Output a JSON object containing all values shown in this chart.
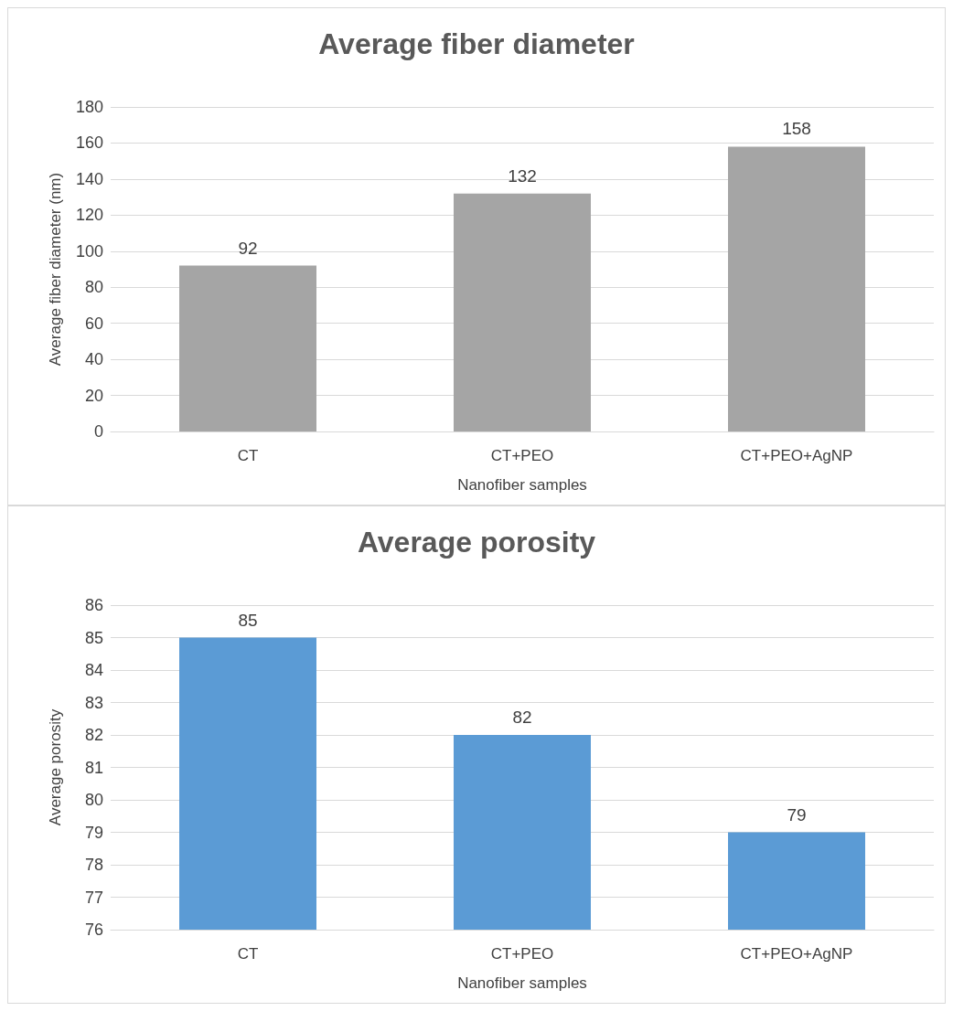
{
  "chart_data": [
    {
      "type": "bar",
      "title": "Average fiber diameter",
      "xlabel": "Nanofiber samples",
      "ylabel": "Average fiber diameter (nm)",
      "categories": [
        "CT",
        "CT+PEO",
        "CT+PEO+AgNP"
      ],
      "values": [
        92,
        132,
        158
      ],
      "color": "#a5a5a5",
      "ylim": [
        0,
        180
      ],
      "yticks": [
        0,
        20,
        40,
        60,
        80,
        100,
        120,
        140,
        160,
        180
      ],
      "grid": "y",
      "data_labels": true
    },
    {
      "type": "bar",
      "title": "Average porosity",
      "xlabel": "Nanofiber samples",
      "ylabel": "Average porosity",
      "categories": [
        "CT",
        "CT+PEO",
        "CT+PEO+AgNP"
      ],
      "values": [
        85,
        82,
        79
      ],
      "color": "#5b9bd5",
      "ylim": [
        76,
        86
      ],
      "yticks": [
        76,
        77,
        78,
        79,
        80,
        81,
        82,
        83,
        84,
        85,
        86
      ],
      "grid": "y",
      "data_labels": true
    }
  ]
}
